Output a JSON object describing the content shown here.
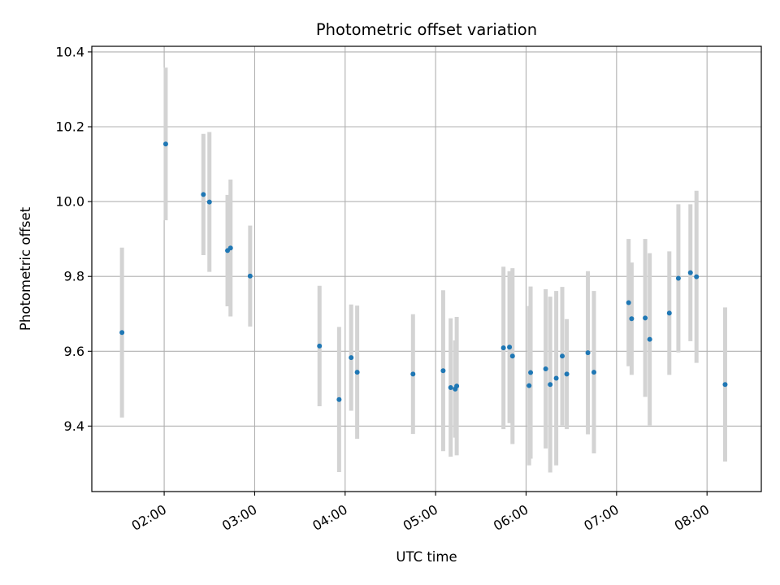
{
  "chart_data": {
    "type": "scatter",
    "title": "Photometric offset variation",
    "xlabel": "UTC time",
    "ylabel": "Photometric offset",
    "x_ticks": [
      "02:00",
      "03:00",
      "04:00",
      "05:00",
      "06:00",
      "07:00",
      "08:00"
    ],
    "y_ticks": [
      "9.4",
      "9.6",
      "9.8",
      "10.0",
      "10.2",
      "10.4"
    ],
    "xlim": [
      "01:12",
      "08:36"
    ],
    "ylim": [
      9.225,
      10.415
    ],
    "grid": true,
    "colors": {
      "point": "#1f77b4",
      "errorbar": "#d3d3d3",
      "grid": "#b0b0b0"
    },
    "points": [
      {
        "x": "01:32",
        "y": 9.65,
        "yerr": 0.227
      },
      {
        "x": "02:01",
        "y": 10.154,
        "yerr": 0.204
      },
      {
        "x": "02:26",
        "y": 10.019,
        "yerr": 0.162
      },
      {
        "x": "02:30",
        "y": 9.999,
        "yerr": 0.187
      },
      {
        "x": "02:42",
        "y": 9.869,
        "yerr": 0.149
      },
      {
        "x": "02:44",
        "y": 9.876,
        "yerr": 0.183
      },
      {
        "x": "02:57",
        "y": 9.801,
        "yerr": 0.135
      },
      {
        "x": "03:43",
        "y": 9.614,
        "yerr": 0.161
      },
      {
        "x": "03:56",
        "y": 9.471,
        "yerr": 0.194
      },
      {
        "x": "04:04",
        "y": 9.583,
        "yerr": 0.142
      },
      {
        "x": "04:08",
        "y": 9.544,
        "yerr": 0.178
      },
      {
        "x": "04:45",
        "y": 9.539,
        "yerr": 0.16
      },
      {
        "x": "05:05",
        "y": 9.548,
        "yerr": 0.215
      },
      {
        "x": "05:10",
        "y": 9.503,
        "yerr": 0.185
      },
      {
        "x": "05:13",
        "y": 9.499,
        "yerr": 0.13
      },
      {
        "x": "05:14",
        "y": 9.507,
        "yerr": 0.185
      },
      {
        "x": "05:45",
        "y": 9.609,
        "yerr": 0.217
      },
      {
        "x": "05:49",
        "y": 9.611,
        "yerr": 0.203
      },
      {
        "x": "05:51",
        "y": 9.587,
        "yerr": 0.235
      },
      {
        "x": "06:02",
        "y": 9.508,
        "yerr": 0.213
      },
      {
        "x": "06:03",
        "y": 9.543,
        "yerr": 0.23
      },
      {
        "x": "06:13",
        "y": 9.553,
        "yerr": 0.213
      },
      {
        "x": "06:16",
        "y": 9.511,
        "yerr": 0.235
      },
      {
        "x": "06:20",
        "y": 9.528,
        "yerr": 0.233
      },
      {
        "x": "06:24",
        "y": 9.587,
        "yerr": 0.185
      },
      {
        "x": "06:27",
        "y": 9.539,
        "yerr": 0.147
      },
      {
        "x": "06:41",
        "y": 9.596,
        "yerr": 0.218
      },
      {
        "x": "06:45",
        "y": 9.544,
        "yerr": 0.217
      },
      {
        "x": "07:08",
        "y": 9.73,
        "yerr": 0.17
      },
      {
        "x": "07:10",
        "y": 9.687,
        "yerr": 0.15
      },
      {
        "x": "07:19",
        "y": 9.689,
        "yerr": 0.211
      },
      {
        "x": "07:22",
        "y": 9.632,
        "yerr": 0.23
      },
      {
        "x": "07:35",
        "y": 9.702,
        "yerr": 0.165
      },
      {
        "x": "07:41",
        "y": 9.795,
        "yerr": 0.198
      },
      {
        "x": "07:49",
        "y": 9.81,
        "yerr": 0.183
      },
      {
        "x": "07:53",
        "y": 9.799,
        "yerr": 0.23
      },
      {
        "x": "08:12",
        "y": 9.511,
        "yerr": 0.206
      }
    ]
  }
}
